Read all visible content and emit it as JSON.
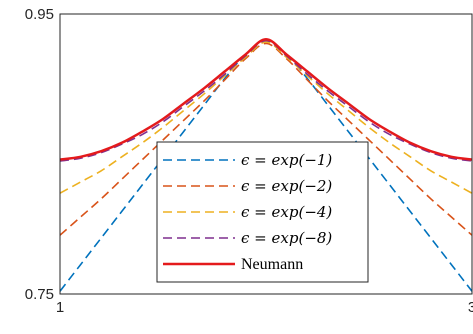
{
  "chart_data": {
    "type": "line",
    "title": "",
    "xlabel": "",
    "ylabel": "",
    "xlim": [
      1,
      3
    ],
    "ylim": [
      0.75,
      0.95
    ],
    "x_ticks": [
      1,
      3
    ],
    "y_ticks": [
      0.75,
      0.95
    ],
    "x_tick_labels": [
      "1",
      "3"
    ],
    "y_tick_labels": [
      "0.75",
      "0.95"
    ],
    "grid": false,
    "legend_position": "bottom-center",
    "x": [
      1.0,
      1.1,
      1.2,
      1.3,
      1.4,
      1.5,
      1.6,
      1.7,
      1.8,
      1.9,
      2.0,
      2.1,
      2.2,
      2.3,
      2.4,
      2.5,
      2.6,
      2.7,
      2.8,
      2.9,
      3.0
    ],
    "series": [
      {
        "name": "ε = exp(−1)",
        "label_pre": "ϵ = ",
        "label_fn": "exp",
        "label_arg": "(−1)",
        "color": "#0072BD",
        "dash": "dashed",
        "values": [
          0.752,
          0.771,
          0.79,
          0.809,
          0.828,
          0.847,
          0.866,
          0.885,
          0.904,
          0.921,
          0.931,
          0.921,
          0.904,
          0.885,
          0.866,
          0.847,
          0.828,
          0.809,
          0.79,
          0.771,
          0.752
        ]
      },
      {
        "name": "ε = exp(−2)",
        "label_pre": "ϵ = ",
        "label_fn": "exp",
        "label_arg": "(−2)",
        "color": "#D95319",
        "dash": "dashed",
        "values": [
          0.792,
          0.805,
          0.818,
          0.832,
          0.846,
          0.86,
          0.874,
          0.888,
          0.903,
          0.918,
          0.929,
          0.918,
          0.903,
          0.888,
          0.874,
          0.86,
          0.846,
          0.832,
          0.818,
          0.805,
          0.792
        ]
      },
      {
        "name": "ε = exp(−4)",
        "label_pre": "ϵ = ",
        "label_fn": "exp",
        "label_arg": "(−4)",
        "color": "#EDB120",
        "dash": "dashed",
        "values": [
          0.822,
          0.83,
          0.838,
          0.848,
          0.858,
          0.869,
          0.881,
          0.893,
          0.906,
          0.919,
          0.93,
          0.919,
          0.906,
          0.893,
          0.881,
          0.869,
          0.858,
          0.848,
          0.838,
          0.83,
          0.822
        ]
      },
      {
        "name": "ε = exp(−8)",
        "label_pre": "ϵ = ",
        "label_fn": "exp",
        "label_arg": "(−8)",
        "color": "#7E2F8E",
        "dash": "dashed",
        "values": [
          0.845,
          0.847,
          0.851,
          0.857,
          0.864,
          0.873,
          0.884,
          0.895,
          0.907,
          0.92,
          0.931,
          0.92,
          0.907,
          0.895,
          0.884,
          0.873,
          0.864,
          0.857,
          0.851,
          0.847,
          0.845
        ]
      },
      {
        "name": "Neumann",
        "label_text": "Neumann",
        "color": "#E41A1C",
        "dash": "solid",
        "values": [
          0.846,
          0.848,
          0.852,
          0.858,
          0.866,
          0.875,
          0.886,
          0.897,
          0.909,
          0.921,
          0.932,
          0.921,
          0.909,
          0.897,
          0.886,
          0.875,
          0.866,
          0.858,
          0.852,
          0.848,
          0.846
        ]
      }
    ]
  }
}
